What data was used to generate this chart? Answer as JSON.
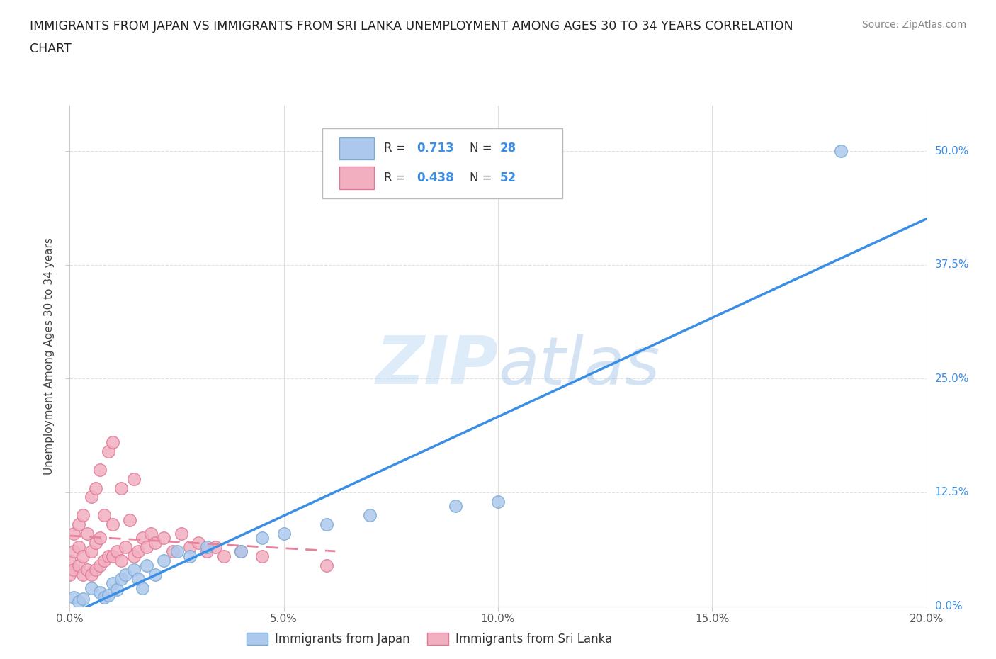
{
  "title_line1": "IMMIGRANTS FROM JAPAN VS IMMIGRANTS FROM SRI LANKA UNEMPLOYMENT AMONG AGES 30 TO 34 YEARS CORRELATION",
  "title_line2": "CHART",
  "source": "Source: ZipAtlas.com",
  "ylabel": "Unemployment Among Ages 30 to 34 years",
  "watermark": "ZIPatlas",
  "xlim": [
    0.0,
    0.2
  ],
  "ylim": [
    0.0,
    0.55
  ],
  "xticks": [
    0.0,
    0.05,
    0.1,
    0.15,
    0.2
  ],
  "xticklabels": [
    "0.0%",
    "5.0%",
    "10.0%",
    "15.0%",
    "20.0%"
  ],
  "yticks": [
    0.0,
    0.125,
    0.25,
    0.375,
    0.5
  ],
  "yticklabels": [
    "0.0%",
    "12.5%",
    "25.0%",
    "37.5%",
    "50.0%"
  ],
  "japan_color": "#adc8ed",
  "japan_edge": "#7aaad4",
  "srilanka_color": "#f2afc0",
  "srilanka_edge": "#e07898",
  "line_japan_color": "#3a8ee6",
  "line_srilanka_color": "#e8829a",
  "japan_R": 0.713,
  "japan_N": 28,
  "srilanka_R": 0.438,
  "srilanka_N": 52,
  "japan_x": [
    0.001,
    0.002,
    0.003,
    0.005,
    0.007,
    0.008,
    0.009,
    0.01,
    0.011,
    0.012,
    0.013,
    0.015,
    0.016,
    0.017,
    0.018,
    0.02,
    0.022,
    0.025,
    0.028,
    0.032,
    0.04,
    0.045,
    0.05,
    0.06,
    0.07,
    0.09,
    0.1,
    0.18
  ],
  "japan_y": [
    0.01,
    0.005,
    0.008,
    0.02,
    0.015,
    0.01,
    0.012,
    0.025,
    0.018,
    0.03,
    0.035,
    0.04,
    0.03,
    0.02,
    0.045,
    0.035,
    0.05,
    0.06,
    0.055,
    0.065,
    0.06,
    0.075,
    0.08,
    0.09,
    0.1,
    0.11,
    0.115,
    0.5
  ],
  "srilanka_x": [
    0.0,
    0.0,
    0.001,
    0.001,
    0.001,
    0.002,
    0.002,
    0.002,
    0.003,
    0.003,
    0.003,
    0.004,
    0.004,
    0.005,
    0.005,
    0.005,
    0.006,
    0.006,
    0.006,
    0.007,
    0.007,
    0.007,
    0.008,
    0.008,
    0.009,
    0.009,
    0.01,
    0.01,
    0.01,
    0.011,
    0.012,
    0.012,
    0.013,
    0.014,
    0.015,
    0.015,
    0.016,
    0.017,
    0.018,
    0.019,
    0.02,
    0.022,
    0.024,
    0.026,
    0.028,
    0.03,
    0.032,
    0.034,
    0.036,
    0.04,
    0.045,
    0.06
  ],
  "srilanka_y": [
    0.035,
    0.05,
    0.04,
    0.06,
    0.08,
    0.045,
    0.065,
    0.09,
    0.035,
    0.055,
    0.1,
    0.04,
    0.08,
    0.035,
    0.06,
    0.12,
    0.04,
    0.07,
    0.13,
    0.045,
    0.075,
    0.15,
    0.05,
    0.1,
    0.055,
    0.17,
    0.055,
    0.09,
    0.18,
    0.06,
    0.05,
    0.13,
    0.065,
    0.095,
    0.055,
    0.14,
    0.06,
    0.075,
    0.065,
    0.08,
    0.07,
    0.075,
    0.06,
    0.08,
    0.065,
    0.07,
    0.06,
    0.065,
    0.055,
    0.06,
    0.055,
    0.045
  ],
  "legend_label_japan": "Immigrants from Japan",
  "legend_label_srilanka": "Immigrants from Sri Lanka",
  "background_color": "#ffffff",
  "grid_color": "#e0e0e0"
}
